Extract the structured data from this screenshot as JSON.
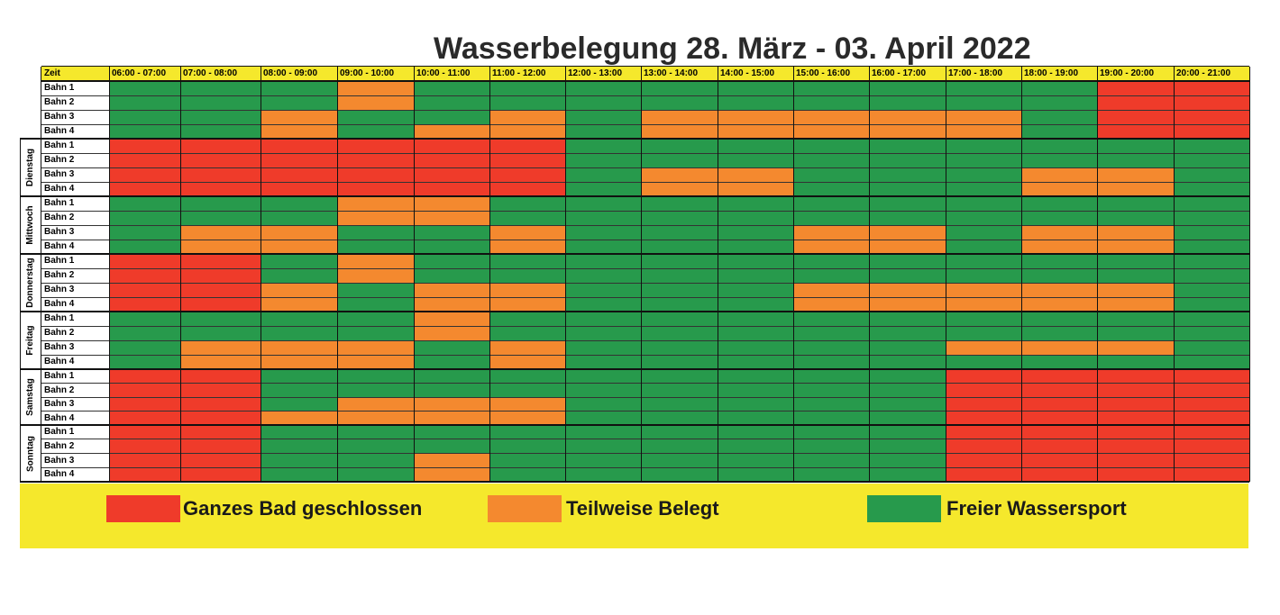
{
  "title": "Wasserbelegung 28. März - 03. April 2022",
  "colors": {
    "red": "#ef3b2a",
    "orange": "#f4892f",
    "green": "#279a4c",
    "yellow": "#f5e82c"
  },
  "header": {
    "corner_label": "Zeit",
    "slots": [
      "06:00 - 07:00",
      "07:00 - 08:00",
      "08:00 - 09:00",
      "09:00 - 10:00",
      "10:00 - 11:00",
      "11:00 - 12:00",
      "12:00 - 13:00",
      "13:00 - 14:00",
      "14:00 - 15:00",
      "15:00 - 16:00",
      "16:00 - 17:00",
      "17:00 - 18:00",
      "18:00 - 19:00",
      "19:00 - 20:00",
      "20:00 - 21:00"
    ]
  },
  "days": [
    {
      "name": "",
      "lanes": [
        {
          "label": "Bahn 1",
          "cells": "GGGOGGGGGGGGGRR"
        },
        {
          "label": "Bahn 2",
          "cells": "GGGOGGGGGGGGGRR"
        },
        {
          "label": "Bahn 3",
          "cells": "GGOGGOGOOOOOGRR"
        },
        {
          "label": "Bahn 4",
          "cells": "GGOGOOGOOOOOGRR"
        }
      ]
    },
    {
      "name": "Dienstag",
      "lanes": [
        {
          "label": "Bahn 1",
          "cells": "RRRRRRGGGGGGGGG"
        },
        {
          "label": "Bahn 2",
          "cells": "RRRRRRGGGGGGGGG"
        },
        {
          "label": "Bahn 3",
          "cells": "RRRRRRGOOGGGOOG"
        },
        {
          "label": "Bahn 4",
          "cells": "RRRRRRGOOGGGOOG"
        }
      ]
    },
    {
      "name": "Mittwoch",
      "lanes": [
        {
          "label": "Bahn 1",
          "cells": "GGGOOGGGGGGGGGG"
        },
        {
          "label": "Bahn 2",
          "cells": "GGGOOGGGGGGGGGG"
        },
        {
          "label": "Bahn 3",
          "cells": "GOOGGOGGGOOGOOG"
        },
        {
          "label": "Bahn 4",
          "cells": "GOOGGOGGGOOGOOG"
        }
      ]
    },
    {
      "name": "Donnerstag",
      "lanes": [
        {
          "label": "Bahn 1",
          "cells": "RRGOGGGGGGGGGGG"
        },
        {
          "label": "Bahn 2",
          "cells": "RRGOGGGGGGGGGGG"
        },
        {
          "label": "Bahn 3",
          "cells": "RROGOOGGGOOOOOG"
        },
        {
          "label": "Bahn 4",
          "cells": "RROGOOGGGOOOOOG"
        }
      ]
    },
    {
      "name": "Freitag",
      "lanes": [
        {
          "label": "Bahn 1",
          "cells": "GGGGOGGGGGGGGGG"
        },
        {
          "label": "Bahn 2",
          "cells": "GGGGOGGGGGGGGGG"
        },
        {
          "label": "Bahn 3",
          "cells": "GOOOGOGGGGGOOOG"
        },
        {
          "label": "Bahn 4",
          "cells": "GOOOGOGGGGGGGGG"
        }
      ]
    },
    {
      "name": "Samstag",
      "lanes": [
        {
          "label": "Bahn 1",
          "cells": "RRGGGGGGGGGRRRR"
        },
        {
          "label": "Bahn 2",
          "cells": "RRGGGGGGGGGRRRR"
        },
        {
          "label": "Bahn 3",
          "cells": "RRGOOOGGGGGRRRR"
        },
        {
          "label": "Bahn 4",
          "cells": "RROOOOGGGGGRRRR"
        }
      ]
    },
    {
      "name": "Sonntag",
      "lanes": [
        {
          "label": "Bahn 1",
          "cells": "RRGGGGGGGGGRRRR"
        },
        {
          "label": "Bahn 2",
          "cells": "RRGGGGGGGGGRRRR"
        },
        {
          "label": "Bahn 3",
          "cells": "RRGGOGGGGGGRRRR"
        },
        {
          "label": "Bahn 4",
          "cells": "RRGGOGGGGGGRRRR"
        }
      ]
    }
  ],
  "legend": [
    {
      "key": "R",
      "label": "Ganzes Bad geschlossen"
    },
    {
      "key": "O",
      "label": "Teilweise Belegt"
    },
    {
      "key": "G",
      "label": "Freier Wassersport"
    }
  ]
}
